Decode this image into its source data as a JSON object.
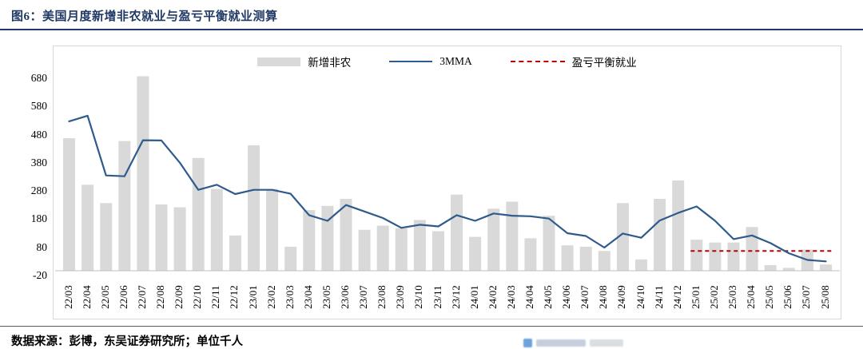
{
  "page": {
    "title": "图6：美国月度新增非农就业与盈亏平衡就业测算",
    "footer": "数据来源：彭博，东吴证券研究所；单位千人"
  },
  "colors": {
    "title_navy": "#1F3864",
    "bar_gray": "#D9D9D9",
    "line_blue": "#2E5B8C",
    "breakeven_red": "#C00000",
    "frame_border": "#D8D8D8",
    "axis_line": "#BFBFBF"
  },
  "chart_data": {
    "type": "bar",
    "title": "图6：美国月度新增非农就业与盈亏平衡就业测算",
    "xlabel": "",
    "ylabel": "",
    "unit": "千人",
    "ylim": [
      -20,
      680
    ],
    "yticks": [
      -20,
      80,
      180,
      280,
      380,
      480,
      580,
      680
    ],
    "grid": false,
    "legend_position": "top-center",
    "categories": [
      "22/03",
      "22/04",
      "22/05",
      "22/06",
      "22/07",
      "22/08",
      "22/09",
      "22/10",
      "22/11",
      "22/12",
      "23/01",
      "23/02",
      "23/03",
      "23/04",
      "23/05",
      "23/06",
      "23/07",
      "23/08",
      "23/09",
      "23/10",
      "23/11",
      "23/12",
      "24/01",
      "24/02",
      "24/03",
      "24/04",
      "24/05",
      "24/06",
      "24/07",
      "24/08",
      "24/09",
      "24/10",
      "24/11",
      "24/12",
      "25/01",
      "25/02",
      "25/03",
      "25/04",
      "25/05",
      "25/06",
      "25/07",
      "25/08"
    ],
    "series": [
      {
        "name": "新增非农",
        "type": "bar",
        "color": "#D9D9D9",
        "values": [
          470,
          305,
          240,
          460,
          690,
          235,
          225,
          400,
          290,
          125,
          445,
          290,
          85,
          215,
          230,
          255,
          145,
          160,
          150,
          180,
          140,
          270,
          120,
          220,
          245,
          115,
          195,
          90,
          85,
          70,
          240,
          40,
          255,
          320,
          110,
          100,
          100,
          155,
          20,
          10,
          75,
          22
        ]
      },
      {
        "name": "3MMA",
        "type": "line",
        "color": "#2E5B8C",
        "values": [
          530,
          550,
          338,
          335,
          463,
          462,
          383,
          287,
          305,
          272,
          287,
          287,
          273,
          197,
          177,
          233,
          210,
          187,
          152,
          163,
          157,
          197,
          177,
          203,
          195,
          193,
          185,
          133,
          123,
          82,
          132,
          117,
          178,
          205,
          228,
          177,
          112,
          125,
          98,
          62,
          38,
          33
        ]
      },
      {
        "name": "盈亏平衡就业",
        "type": "dashed-line",
        "color": "#C00000",
        "values": [
          null,
          null,
          null,
          null,
          null,
          null,
          null,
          null,
          null,
          null,
          null,
          null,
          null,
          null,
          null,
          null,
          null,
          null,
          null,
          null,
          null,
          null,
          null,
          null,
          null,
          null,
          null,
          null,
          null,
          null,
          null,
          null,
          null,
          null,
          70,
          70,
          70,
          70,
          70,
          70,
          70,
          70
        ]
      }
    ]
  }
}
